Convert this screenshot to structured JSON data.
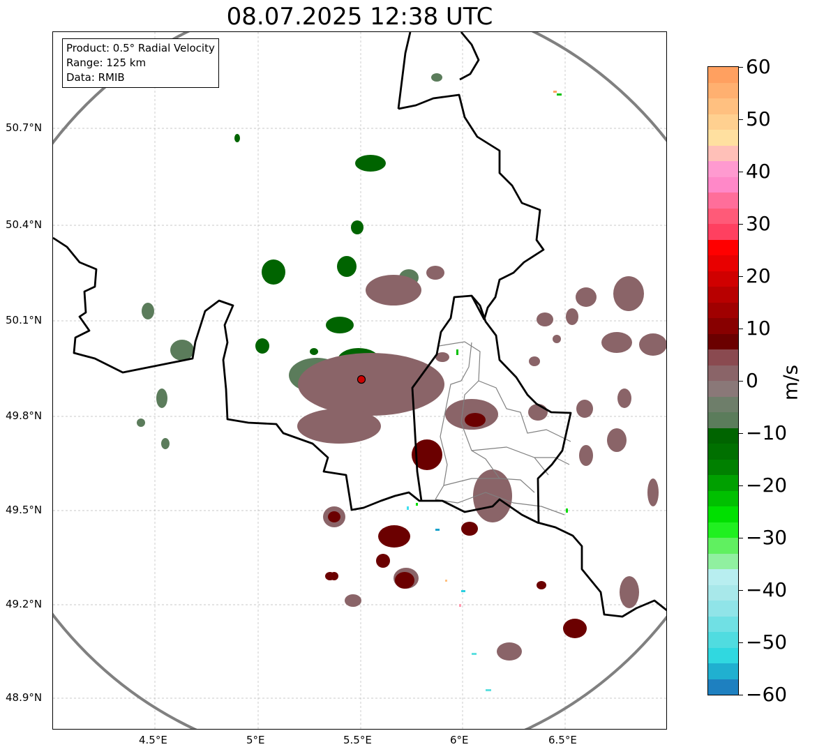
{
  "title": "08.07.2025 12:38 UTC",
  "info_box": [
    "Product: 0.5° Radial Velocity",
    "Range: 125 km",
    "Data: RMIB"
  ],
  "x_ticks": [
    "4.5°E",
    "5°E",
    "5.5°E",
    "6°E",
    "6.5°E"
  ],
  "y_ticks": [
    "50.7°N",
    "50.4°N",
    "50.1°N",
    "49.8°N",
    "49.5°N",
    "49.2°N",
    "48.9°N"
  ],
  "colorbar": {
    "label": "m/s",
    "min": -60,
    "max": 60,
    "ticks": [
      "60",
      "50",
      "40",
      "30",
      "20",
      "10",
      "0",
      "−10",
      "−20",
      "−30",
      "−40",
      "−50",
      "−60"
    ],
    "tick_values": [
      60,
      50,
      40,
      30,
      20,
      10,
      0,
      -10,
      -20,
      -30,
      -40,
      -50,
      -60
    ]
  },
  "colors": {
    "range_ring": "#808080",
    "border_national": "#000000",
    "border_regional": "#808080",
    "radar_site": "#cc0000",
    "approaching_dark": "#006400",
    "receding_dark": "#6b0000",
    "near_zero_green": "#5b7c5b",
    "near_zero_mauve": "#8a6468"
  }
}
